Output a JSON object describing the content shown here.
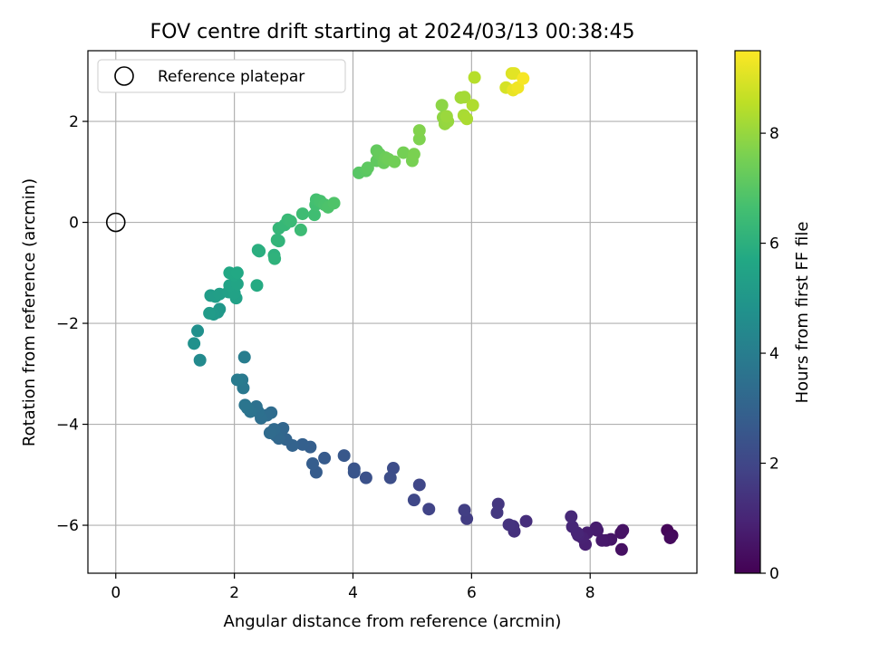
{
  "chart_data": {
    "type": "scatter",
    "title": "FOV centre drift starting at 2024/03/13 00:38:45",
    "xlabel": "Angular distance from reference (arcmin)",
    "ylabel": "Rotation from reference (arcmin)",
    "xlim": [
      -0.47,
      9.8
    ],
    "ylim": [
      -6.95,
      3.4
    ],
    "xticks": [
      0,
      2,
      4,
      6,
      8
    ],
    "yticks": [
      -6,
      -4,
      -2,
      0,
      2
    ],
    "grid": true,
    "legend": {
      "position": "top-left",
      "entries": [
        "Reference platepar"
      ]
    },
    "reference_point": {
      "x": 0,
      "y": 0
    },
    "colorbar": {
      "label": "Hours from first FF file",
      "min": 0,
      "max": 9.5,
      "ticks": [
        0,
        2,
        4,
        6,
        8
      ],
      "colormap": "viridis"
    },
    "points": [
      {
        "x": 9.3,
        "y": -6.1,
        "c": 0.15
      },
      {
        "x": 9.38,
        "y": -6.2,
        "c": 0.2
      },
      {
        "x": 9.35,
        "y": -6.25,
        "c": 0.25
      },
      {
        "x": 8.53,
        "y": -6.48,
        "c": 0.4
      },
      {
        "x": 8.52,
        "y": -6.15,
        "c": 0.45
      },
      {
        "x": 8.55,
        "y": -6.1,
        "c": 0.5
      },
      {
        "x": 8.35,
        "y": -6.28,
        "c": 0.55
      },
      {
        "x": 8.27,
        "y": -6.3,
        "c": 0.6
      },
      {
        "x": 8.2,
        "y": -6.3,
        "c": 0.65
      },
      {
        "x": 8.12,
        "y": -6.1,
        "c": 0.7
      },
      {
        "x": 8.1,
        "y": -6.05,
        "c": 0.75
      },
      {
        "x": 7.95,
        "y": -6.15,
        "c": 0.8
      },
      {
        "x": 7.92,
        "y": -6.38,
        "c": 0.85
      },
      {
        "x": 7.87,
        "y": -6.25,
        "c": 0.9
      },
      {
        "x": 7.8,
        "y": -6.2,
        "c": 0.95
      },
      {
        "x": 7.78,
        "y": -6.15,
        "c": 1.0
      },
      {
        "x": 7.7,
        "y": -6.03,
        "c": 1.05
      },
      {
        "x": 7.68,
        "y": -5.83,
        "c": 1.1
      },
      {
        "x": 6.92,
        "y": -5.92,
        "c": 1.25
      },
      {
        "x": 6.72,
        "y": -6.12,
        "c": 1.3
      },
      {
        "x": 6.7,
        "y": -6.02,
        "c": 1.35
      },
      {
        "x": 6.63,
        "y": -5.99,
        "c": 1.4
      },
      {
        "x": 6.45,
        "y": -5.58,
        "c": 1.5
      },
      {
        "x": 6.43,
        "y": -5.75,
        "c": 1.55
      },
      {
        "x": 5.92,
        "y": -5.87,
        "c": 1.7
      },
      {
        "x": 5.88,
        "y": -5.7,
        "c": 1.75
      },
      {
        "x": 5.28,
        "y": -5.68,
        "c": 1.9
      },
      {
        "x": 5.12,
        "y": -5.2,
        "c": 2.0
      },
      {
        "x": 5.03,
        "y": -5.5,
        "c": 2.05
      },
      {
        "x": 4.68,
        "y": -4.87,
        "c": 2.2
      },
      {
        "x": 4.63,
        "y": -5.06,
        "c": 2.25
      },
      {
        "x": 4.22,
        "y": -5.06,
        "c": 2.35
      },
      {
        "x": 4.02,
        "y": -4.88,
        "c": 2.45
      },
      {
        "x": 4.02,
        "y": -4.95,
        "c": 2.5
      },
      {
        "x": 3.85,
        "y": -4.62,
        "c": 2.6
      },
      {
        "x": 3.52,
        "y": -4.67,
        "c": 2.7
      },
      {
        "x": 3.38,
        "y": -4.95,
        "c": 2.75
      },
      {
        "x": 3.32,
        "y": -4.78,
        "c": 2.8
      },
      {
        "x": 3.28,
        "y": -4.45,
        "c": 2.85
      },
      {
        "x": 3.15,
        "y": -4.4,
        "c": 2.9
      },
      {
        "x": 2.98,
        "y": -4.42,
        "c": 3.0
      },
      {
        "x": 2.87,
        "y": -4.3,
        "c": 3.05
      },
      {
        "x": 2.82,
        "y": -4.08,
        "c": 3.1
      },
      {
        "x": 2.75,
        "y": -4.28,
        "c": 3.15
      },
      {
        "x": 2.7,
        "y": -4.22,
        "c": 3.2
      },
      {
        "x": 2.67,
        "y": -4.1,
        "c": 3.25
      },
      {
        "x": 2.6,
        "y": -4.17,
        "c": 3.3
      },
      {
        "x": 2.62,
        "y": -3.77,
        "c": 3.35
      },
      {
        "x": 2.55,
        "y": -3.82,
        "c": 3.4
      },
      {
        "x": 2.45,
        "y": -3.88,
        "c": 3.45
      },
      {
        "x": 2.4,
        "y": -3.75,
        "c": 3.5
      },
      {
        "x": 2.37,
        "y": -3.65,
        "c": 3.55
      },
      {
        "x": 2.27,
        "y": -3.75,
        "c": 3.6
      },
      {
        "x": 2.22,
        "y": -3.68,
        "c": 3.65
      },
      {
        "x": 2.18,
        "y": -3.62,
        "c": 3.7
      },
      {
        "x": 2.15,
        "y": -3.28,
        "c": 3.8
      },
      {
        "x": 2.13,
        "y": -3.12,
        "c": 3.85
      },
      {
        "x": 2.05,
        "y": -3.12,
        "c": 3.9
      },
      {
        "x": 2.17,
        "y": -2.67,
        "c": 4.0
      },
      {
        "x": 1.42,
        "y": -2.73,
        "c": 4.5
      },
      {
        "x": 1.38,
        "y": -2.15,
        "c": 4.7
      },
      {
        "x": 1.32,
        "y": -2.4,
        "c": 4.75
      },
      {
        "x": 1.75,
        "y": -1.72,
        "c": 5.0
      },
      {
        "x": 1.72,
        "y": -1.78,
        "c": 5.05
      },
      {
        "x": 1.65,
        "y": -1.82,
        "c": 5.1
      },
      {
        "x": 1.58,
        "y": -1.8,
        "c": 5.15
      },
      {
        "x": 1.6,
        "y": -1.45,
        "c": 5.2
      },
      {
        "x": 1.68,
        "y": -1.47,
        "c": 5.25
      },
      {
        "x": 1.75,
        "y": -1.42,
        "c": 5.3
      },
      {
        "x": 1.9,
        "y": -1.38,
        "c": 5.35
      },
      {
        "x": 2.03,
        "y": -1.5,
        "c": 5.4
      },
      {
        "x": 2.0,
        "y": -1.4,
        "c": 5.45
      },
      {
        "x": 1.92,
        "y": -1.25,
        "c": 5.5
      },
      {
        "x": 2.05,
        "y": -1.22,
        "c": 5.55
      },
      {
        "x": 2.0,
        "y": -1.05,
        "c": 5.6
      },
      {
        "x": 1.92,
        "y": -1.0,
        "c": 5.65
      },
      {
        "x": 2.05,
        "y": -1.0,
        "c": 5.7
      },
      {
        "x": 2.38,
        "y": -1.25,
        "c": 5.8
      },
      {
        "x": 2.42,
        "y": -0.57,
        "c": 5.9
      },
      {
        "x": 2.4,
        "y": -0.55,
        "c": 5.95
      },
      {
        "x": 2.67,
        "y": -0.65,
        "c": 6.05
      },
      {
        "x": 2.68,
        "y": -0.72,
        "c": 6.1
      },
      {
        "x": 2.75,
        "y": -0.37,
        "c": 6.15
      },
      {
        "x": 2.72,
        "y": -0.35,
        "c": 6.2
      },
      {
        "x": 2.75,
        "y": -0.12,
        "c": 6.25
      },
      {
        "x": 2.85,
        "y": -0.05,
        "c": 6.3
      },
      {
        "x": 2.9,
        "y": 0.05,
        "c": 6.35
      },
      {
        "x": 2.95,
        "y": 0.02,
        "c": 6.4
      },
      {
        "x": 3.12,
        "y": -0.15,
        "c": 6.45
      },
      {
        "x": 3.15,
        "y": 0.17,
        "c": 6.5
      },
      {
        "x": 3.35,
        "y": 0.15,
        "c": 6.55
      },
      {
        "x": 3.37,
        "y": 0.35,
        "c": 6.6
      },
      {
        "x": 3.38,
        "y": 0.45,
        "c": 6.65
      },
      {
        "x": 3.45,
        "y": 0.42,
        "c": 6.7
      },
      {
        "x": 3.52,
        "y": 0.35,
        "c": 6.75
      },
      {
        "x": 3.58,
        "y": 0.3,
        "c": 6.8
      },
      {
        "x": 3.68,
        "y": 0.38,
        "c": 6.85
      },
      {
        "x": 4.1,
        "y": 0.98,
        "c": 7.0
      },
      {
        "x": 4.22,
        "y": 1.02,
        "c": 7.05
      },
      {
        "x": 4.25,
        "y": 1.08,
        "c": 7.1
      },
      {
        "x": 4.4,
        "y": 1.22,
        "c": 7.15
      },
      {
        "x": 4.4,
        "y": 1.42,
        "c": 7.2
      },
      {
        "x": 4.45,
        "y": 1.35,
        "c": 7.25
      },
      {
        "x": 4.52,
        "y": 1.18,
        "c": 7.3
      },
      {
        "x": 4.55,
        "y": 1.28,
        "c": 7.35
      },
      {
        "x": 4.6,
        "y": 1.25,
        "c": 7.4
      },
      {
        "x": 4.7,
        "y": 1.2,
        "c": 7.45
      },
      {
        "x": 4.85,
        "y": 1.38,
        "c": 7.5
      },
      {
        "x": 5.0,
        "y": 1.22,
        "c": 7.55
      },
      {
        "x": 5.03,
        "y": 1.35,
        "c": 7.6
      },
      {
        "x": 5.12,
        "y": 1.65,
        "c": 7.65
      },
      {
        "x": 5.12,
        "y": 1.82,
        "c": 7.7
      },
      {
        "x": 5.5,
        "y": 2.32,
        "c": 7.85
      },
      {
        "x": 5.52,
        "y": 2.08,
        "c": 7.9
      },
      {
        "x": 5.55,
        "y": 1.95,
        "c": 7.95
      },
      {
        "x": 5.6,
        "y": 2.0,
        "c": 8.0
      },
      {
        "x": 5.58,
        "y": 2.1,
        "c": 8.05
      },
      {
        "x": 5.82,
        "y": 2.47,
        "c": 8.15
      },
      {
        "x": 5.88,
        "y": 2.48,
        "c": 8.2
      },
      {
        "x": 5.87,
        "y": 2.12,
        "c": 8.25
      },
      {
        "x": 5.92,
        "y": 2.05,
        "c": 8.3
      },
      {
        "x": 6.02,
        "y": 2.32,
        "c": 8.35
      },
      {
        "x": 6.05,
        "y": 2.87,
        "c": 8.45
      },
      {
        "x": 6.58,
        "y": 2.67,
        "c": 8.9
      },
      {
        "x": 6.68,
        "y": 2.95,
        "c": 9.0
      },
      {
        "x": 6.72,
        "y": 2.95,
        "c": 9.1
      },
      {
        "x": 6.7,
        "y": 2.62,
        "c": 9.2
      },
      {
        "x": 6.78,
        "y": 2.67,
        "c": 9.3
      },
      {
        "x": 6.87,
        "y": 2.85,
        "c": 9.4
      }
    ]
  }
}
